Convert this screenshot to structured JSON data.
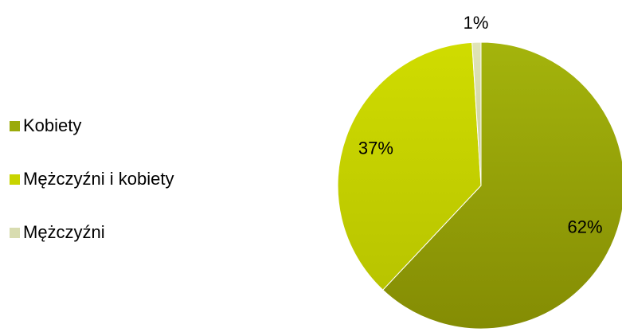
{
  "chart_data": {
    "type": "pie",
    "title": "",
    "categories": [
      "Kobiety",
      "Mężczyźni i kobiety",
      "Mężczyźni"
    ],
    "values": [
      62,
      37,
      1
    ],
    "value_labels": [
      "62%",
      "37%",
      "1%"
    ],
    "colors": [
      "#9aaa0b",
      "#c8d400",
      "#d8dcb0"
    ],
    "legend_position": "left"
  }
}
